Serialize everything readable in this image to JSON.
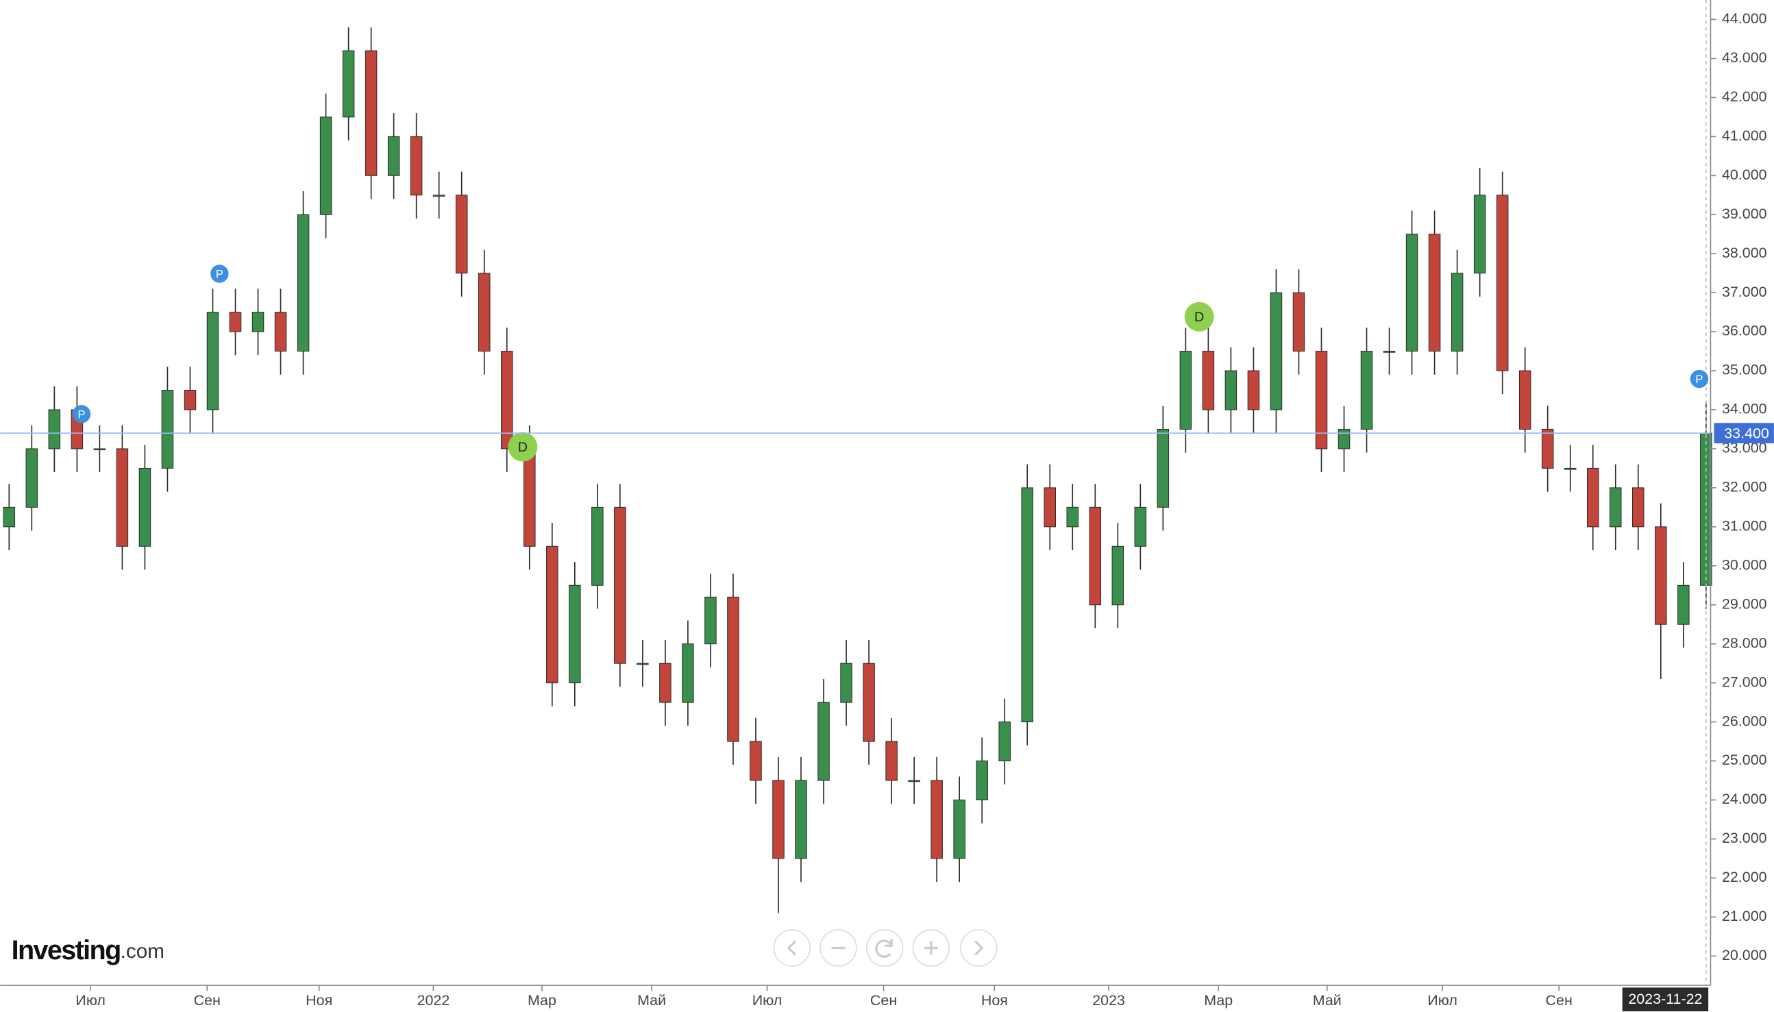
{
  "chart_data": {
    "type": "candlestick",
    "brand": "Investing",
    "brand_suffix": ".com",
    "current_date": "2023-11-22",
    "last_price": {
      "value": 33.4,
      "label": "33.400"
    },
    "markers": [
      {
        "label": "P"
      },
      {
        "label": "P"
      },
      {
        "label": "D"
      },
      {
        "label": "D"
      },
      {
        "label": "P"
      }
    ],
    "up_color": "#3b8f4c",
    "down_color": "#c1453a",
    "xlim": [
      -0.4,
      75.1
    ],
    "xticks": [
      {
        "value": 3.6,
        "label": "Июл"
      },
      {
        "value": 8.75,
        "label": "Сен"
      },
      {
        "value": 13.7,
        "label": "Ноя"
      },
      {
        "value": 18.75,
        "label": "2022"
      },
      {
        "value": 23.55,
        "label": "Мар"
      },
      {
        "value": 28.4,
        "label": "Май"
      },
      {
        "value": 33.5,
        "label": "Июл"
      },
      {
        "value": 38.65,
        "label": "Сен"
      },
      {
        "value": 43.55,
        "label": "Ноя"
      },
      {
        "value": 48.6,
        "label": "2023"
      },
      {
        "value": 53.45,
        "label": "Мар"
      },
      {
        "value": 58.25,
        "label": "Май"
      },
      {
        "value": 63.35,
        "label": "Июл"
      },
      {
        "value": 68.5,
        "label": "Сен"
      }
    ],
    "ylim": [
      19.25,
      44.5
    ],
    "yticks": [
      {
        "value": 20,
        "label": "20.000"
      },
      {
        "value": 21,
        "label": "21.000"
      },
      {
        "value": 22,
        "label": "22.000"
      },
      {
        "value": 23,
        "label": "23.000"
      },
      {
        "value": 24,
        "label": "24.000"
      },
      {
        "value": 25,
        "label": "25.000"
      },
      {
        "value": 26,
        "label": "26.000"
      },
      {
        "value": 27,
        "label": "27.000"
      },
      {
        "value": 28,
        "label": "28.000"
      },
      {
        "value": 29,
        "label": "29.000"
      },
      {
        "value": 30,
        "label": "30.000"
      },
      {
        "value": 31,
        "label": "31.000"
      },
      {
        "value": 32,
        "label": "32.000"
      },
      {
        "value": 33,
        "label": "33.000"
      },
      {
        "value": 34,
        "label": "34.000"
      },
      {
        "value": 35,
        "label": "35.000"
      },
      {
        "value": 36,
        "label": "36.000"
      },
      {
        "value": 37,
        "label": "37.000"
      },
      {
        "value": 38,
        "label": "38.000"
      },
      {
        "value": 39,
        "label": "39.000"
      },
      {
        "value": 40,
        "label": "40.000"
      },
      {
        "value": 41,
        "label": "41.000"
      },
      {
        "value": 42,
        "label": "42.000"
      },
      {
        "value": 43,
        "label": "43.000"
      },
      {
        "value": 44,
        "label": "44.000"
      }
    ],
    "open": [
      31,
      31.5,
      33,
      34,
      33,
      33,
      30.5,
      32.5,
      34.5,
      34,
      36.5,
      36,
      36.5,
      35.5,
      39,
      41.5,
      43.2,
      40,
      41,
      39.5,
      39.5,
      37.5,
      35.5,
      33,
      30.5,
      27,
      29.5,
      31.5,
      27.5,
      27.5,
      26.5,
      28,
      29.2,
      25.5,
      24.5,
      22.5,
      24.5,
      26.5,
      27.5,
      25.5,
      24.5,
      24.5,
      22.5,
      24,
      25,
      26,
      32,
      31,
      31.5,
      29,
      30.5,
      31.5,
      33.5,
      35.5,
      34,
      35,
      34,
      37,
      35.5,
      33,
      33.5,
      35.5,
      35.5,
      38.5,
      35.5,
      37.5,
      39.5,
      35,
      33.5,
      32.5,
      32.5,
      31,
      32,
      31,
      28.5,
      29.5
    ],
    "high": [
      32.1,
      33.6,
      34.6,
      34.6,
      33.6,
      33.6,
      33.1,
      35.1,
      35.1,
      37.1,
      37.1,
      37.1,
      37.1,
      39.6,
      42.1,
      43.8,
      43.8,
      41.6,
      41.6,
      40.1,
      40.1,
      38.1,
      36.1,
      33.6,
      31.1,
      30.1,
      32.1,
      32.1,
      28.1,
      28.1,
      28.6,
      29.8,
      29.8,
      26.1,
      25.1,
      25.1,
      27.1,
      28.1,
      28.1,
      26.1,
      25.1,
      25.1,
      24.6,
      25.6,
      26.6,
      32.6,
      32.6,
      32.1,
      32.1,
      31.1,
      32.1,
      34.1,
      36.1,
      36.1,
      35.6,
      35.6,
      37.6,
      37.6,
      36.1,
      34.1,
      36.1,
      36.1,
      39.1,
      39.1,
      38.1,
      40.2,
      40.1,
      35.6,
      34.1,
      33.1,
      33.1,
      32.6,
      32.6,
      31.6,
      30.1,
      34.2
    ],
    "low": [
      30.4,
      30.9,
      32.4,
      32.4,
      32.4,
      29.9,
      29.9,
      31.9,
      33.4,
      33.4,
      35.4,
      35.4,
      34.9,
      34.9,
      38.4,
      40.9,
      39.4,
      39.4,
      38.9,
      38.9,
      36.9,
      34.9,
      32.4,
      29.9,
      26.4,
      26.4,
      28.9,
      26.9,
      26.9,
      25.9,
      25.9,
      27.4,
      24.9,
      23.9,
      21.1,
      21.9,
      23.9,
      25.9,
      24.9,
      23.9,
      23.9,
      21.9,
      21.9,
      23.4,
      24.4,
      25.4,
      30.4,
      30.4,
      28.4,
      28.4,
      29.9,
      30.9,
      32.9,
      33.4,
      33.4,
      33.4,
      33.4,
      34.9,
      32.4,
      32.4,
      32.9,
      34.9,
      34.9,
      34.9,
      34.9,
      36.9,
      34.4,
      32.9,
      31.9,
      31.9,
      30.4,
      30.4,
      30.4,
      27.1,
      27.9,
      28.9
    ],
    "close": [
      31.5,
      33,
      34,
      33,
      33,
      30.5,
      32.5,
      34.5,
      34,
      36.5,
      36,
      36.5,
      35.5,
      39,
      41.5,
      43.2,
      40,
      41,
      39.5,
      39.5,
      37.5,
      35.5,
      33,
      30.5,
      27,
      29.5,
      31.5,
      27.5,
      27.5,
      26.5,
      28,
      29.2,
      25.5,
      24.5,
      22.5,
      24.5,
      26.5,
      27.5,
      25.5,
      24.5,
      24.5,
      22.5,
      24,
      25,
      26,
      32,
      31,
      31.5,
      29,
      30.5,
      31.5,
      33.5,
      35.5,
      34,
      35,
      34,
      37,
      35.5,
      33,
      33.5,
      35.5,
      35.5,
      38.5,
      35.5,
      37.5,
      39.5,
      35,
      33.5,
      32.5,
      32.5,
      31,
      32,
      31,
      28.5,
      29.5,
      33.4
    ]
  }
}
